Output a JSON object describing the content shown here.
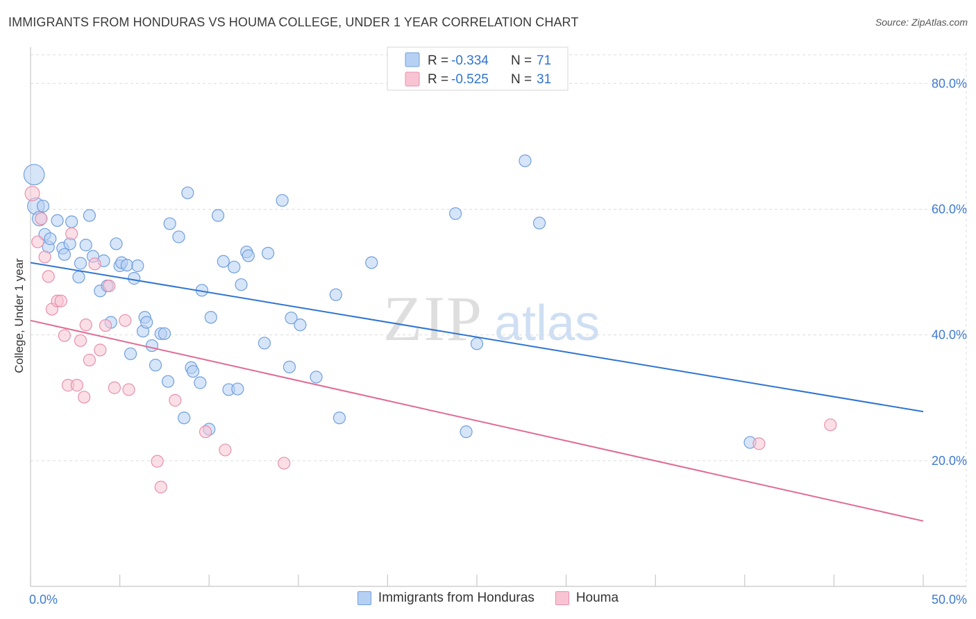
{
  "header": {
    "title": "IMMIGRANTS FROM HONDURAS VS HOUMA COLLEGE, UNDER 1 YEAR CORRELATION CHART",
    "source": "Source: ZipAtlas.com"
  },
  "watermark": {
    "part1": "ZIP",
    "part2": "atlas"
  },
  "colors": {
    "blue_fill": "#b6d0f4",
    "blue_stroke": "#6f9fdc",
    "blue_line": "#2f74d0",
    "pink_fill": "#f8c4d4",
    "pink_stroke": "#e88fab",
    "pink_line": "#e06a93",
    "tick_text": "#3f7bd0"
  },
  "legend": {
    "items": [
      {
        "r_label": "R =",
        "r_value": "-0.334",
        "n_label": "N =",
        "n_value": "71"
      },
      {
        "r_label": "R =",
        "r_value": "-0.525",
        "n_label": "N =",
        "n_value": "31"
      }
    ]
  },
  "bottom_legend": {
    "series1": "Immigrants from Honduras",
    "series2": "Houma"
  },
  "chart_data": {
    "type": "scatter",
    "title": "IMMIGRANTS FROM HONDURAS VS HOUMA COLLEGE, UNDER 1 YEAR CORRELATION CHART",
    "xlabel": "",
    "ylabel": "College, Under 1 year",
    "xlim": [
      0,
      50
    ],
    "ylim": [
      0,
      85
    ],
    "x_tick_labels": [
      "0.0%",
      "50.0%"
    ],
    "y_ticks": [
      20,
      40,
      60,
      80
    ],
    "y_tick_labels": [
      "20.0%",
      "40.0%",
      "60.0%",
      "80.0%"
    ],
    "grid": true,
    "series": [
      {
        "name": "Immigrants from Honduras",
        "R": -0.334,
        "N": 71,
        "trend": {
          "x": [
            0,
            50
          ],
          "y": [
            51.5,
            27.8
          ]
        },
        "points": [
          [
            0.2,
            65.5,
            3
          ],
          [
            0.3,
            60.5,
            2
          ],
          [
            0.5,
            58.5,
            1.5
          ],
          [
            0.7,
            60.5,
            1
          ],
          [
            0.8,
            56,
            1
          ],
          [
            1,
            54,
            1
          ],
          [
            1.1,
            55.3,
            1
          ],
          [
            1.5,
            58.2,
            1
          ],
          [
            1.8,
            53.8,
            1
          ],
          [
            1.9,
            52.8,
            1
          ],
          [
            2.2,
            54.5,
            1
          ],
          [
            2.3,
            58,
            1
          ],
          [
            2.7,
            49.2,
            1
          ],
          [
            2.8,
            51.4,
            1
          ],
          [
            3.1,
            54.3,
            1
          ],
          [
            3.3,
            59,
            1
          ],
          [
            3.5,
            52.5,
            1
          ],
          [
            3.9,
            47,
            1
          ],
          [
            4.1,
            51.8,
            1
          ],
          [
            4.3,
            47.8,
            1
          ],
          [
            4.5,
            42,
            1
          ],
          [
            4.8,
            54.5,
            1
          ],
          [
            5,
            51,
            1
          ],
          [
            5.1,
            51.5,
            1
          ],
          [
            5.4,
            51.1,
            1
          ],
          [
            5.6,
            37,
            1
          ],
          [
            5.8,
            49,
            1
          ],
          [
            6,
            51,
            1
          ],
          [
            6.3,
            40.6,
            1
          ],
          [
            6.4,
            42.8,
            1
          ],
          [
            6.5,
            42,
            1
          ],
          [
            6.8,
            38.3,
            1
          ],
          [
            7,
            35.2,
            1
          ],
          [
            7.3,
            40.2,
            1
          ],
          [
            7.5,
            40.2,
            1
          ],
          [
            7.7,
            32.6,
            1
          ],
          [
            7.8,
            57.7,
            1
          ],
          [
            8.3,
            55.6,
            1
          ],
          [
            8.6,
            26.8,
            1
          ],
          [
            8.8,
            62.6,
            1
          ],
          [
            9,
            34.8,
            1
          ],
          [
            9.1,
            34.2,
            1
          ],
          [
            9.5,
            32.4,
            1
          ],
          [
            9.6,
            47.1,
            1
          ],
          [
            10,
            25,
            1
          ],
          [
            10.1,
            42.8,
            1
          ],
          [
            10.5,
            59,
            1
          ],
          [
            10.8,
            51.7,
            1
          ],
          [
            11.1,
            31.3,
            1
          ],
          [
            11.4,
            50.8,
            1
          ],
          [
            11.6,
            31.4,
            1
          ],
          [
            11.8,
            48,
            1
          ],
          [
            12.1,
            53.2,
            1
          ],
          [
            12.2,
            52.6,
            1
          ],
          [
            13.1,
            38.7,
            1
          ],
          [
            13.3,
            53,
            1
          ],
          [
            14.1,
            61.4,
            1
          ],
          [
            14.5,
            34.9,
            1
          ],
          [
            14.6,
            42.7,
            1
          ],
          [
            15.1,
            41.6,
            1
          ],
          [
            16,
            33.3,
            1
          ],
          [
            17.1,
            46.4,
            1
          ],
          [
            17.3,
            26.8,
            1
          ],
          [
            19.1,
            51.5,
            1
          ],
          [
            23.8,
            59.3,
            1
          ],
          [
            24.4,
            24.6,
            1
          ],
          [
            25,
            38.6,
            1
          ],
          [
            27.7,
            67.7,
            1
          ],
          [
            28.5,
            57.8,
            1
          ],
          [
            40.3,
            22.9,
            1
          ]
        ]
      },
      {
        "name": "Houma",
        "R": -0.525,
        "N": 31,
        "trend": {
          "x": [
            0,
            50
          ],
          "y": [
            42.3,
            10.4
          ]
        },
        "points": [
          [
            0.1,
            62.5,
            1.5
          ],
          [
            0.4,
            54.8,
            1
          ],
          [
            0.6,
            58.5,
            1
          ],
          [
            0.8,
            52.4,
            1
          ],
          [
            1,
            49.3,
            1
          ],
          [
            1.2,
            44.1,
            1
          ],
          [
            1.5,
            45.4,
            1
          ],
          [
            1.7,
            45.4,
            1
          ],
          [
            1.9,
            39.9,
            1
          ],
          [
            2.1,
            32,
            1
          ],
          [
            2.3,
            56.1,
            1
          ],
          [
            2.6,
            32,
            1
          ],
          [
            2.8,
            39.1,
            1
          ],
          [
            3,
            30.1,
            1
          ],
          [
            3.1,
            41.6,
            1
          ],
          [
            3.3,
            36,
            1
          ],
          [
            3.6,
            51.3,
            1
          ],
          [
            3.9,
            37.6,
            1
          ],
          [
            4.2,
            41.5,
            1
          ],
          [
            4.4,
            47.8,
            1
          ],
          [
            4.7,
            31.6,
            1
          ],
          [
            5.3,
            42.3,
            1
          ],
          [
            5.5,
            31.3,
            1
          ],
          [
            7.1,
            19.9,
            1
          ],
          [
            7.3,
            15.8,
            1
          ],
          [
            8.1,
            29.6,
            1
          ],
          [
            9.8,
            24.6,
            1
          ],
          [
            10.9,
            21.7,
            1
          ],
          [
            14.2,
            19.6,
            1
          ],
          [
            40.8,
            22.7,
            1
          ],
          [
            44.8,
            25.7,
            1
          ]
        ]
      }
    ]
  }
}
